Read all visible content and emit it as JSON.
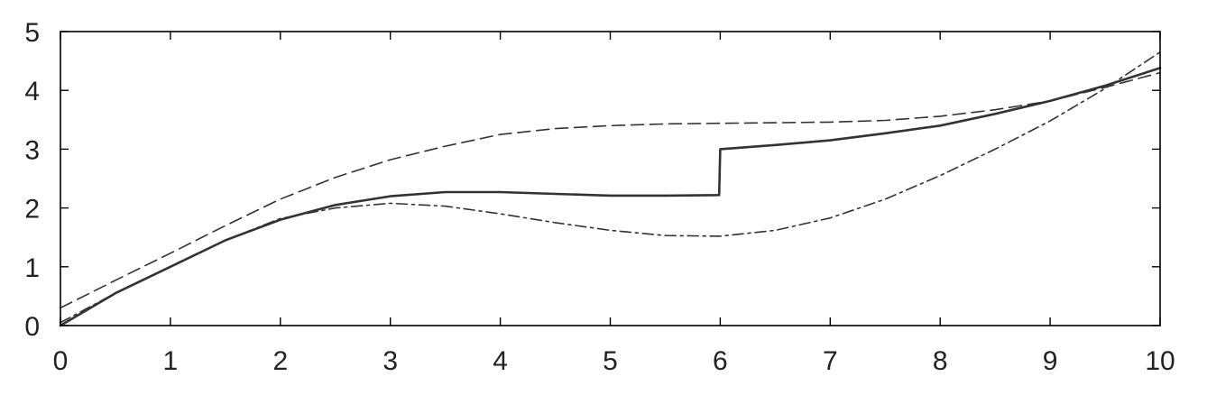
{
  "chart_data": {
    "type": "line",
    "xlim": [
      0,
      10
    ],
    "ylim": [
      0,
      5
    ],
    "x_ticks": [
      "0",
      "1",
      "2",
      "3",
      "4",
      "5",
      "6",
      "7",
      "8",
      "9",
      "10"
    ],
    "y_ticks": [
      "0",
      "1",
      "2",
      "3",
      "4",
      "5"
    ],
    "grid": false,
    "legend": "none",
    "series": [
      {
        "style": "solid",
        "color": "#333333",
        "points": [
          [
            0,
            0
          ],
          [
            0.5,
            0.55
          ],
          [
            1,
            1.0
          ],
          [
            1.5,
            1.45
          ],
          [
            2,
            1.8
          ],
          [
            2.5,
            2.05
          ],
          [
            3,
            2.2
          ],
          [
            3.5,
            2.27
          ],
          [
            4,
            2.27
          ],
          [
            4.5,
            2.24
          ],
          [
            5,
            2.21
          ],
          [
            5.5,
            2.21
          ],
          [
            5.99,
            2.22
          ],
          [
            6,
            3.0
          ],
          [
            6.5,
            3.07
          ],
          [
            7,
            3.15
          ],
          [
            7.5,
            3.27
          ],
          [
            8,
            3.4
          ],
          [
            8.5,
            3.6
          ],
          [
            9,
            3.82
          ],
          [
            9.5,
            4.08
          ],
          [
            10,
            4.38
          ]
        ]
      },
      {
        "style": "dashed",
        "color": "#333333",
        "points": [
          [
            0,
            0.3
          ],
          [
            0.5,
            0.77
          ],
          [
            1,
            1.23
          ],
          [
            1.5,
            1.7
          ],
          [
            2,
            2.15
          ],
          [
            2.5,
            2.52
          ],
          [
            3,
            2.82
          ],
          [
            3.5,
            3.05
          ],
          [
            4,
            3.25
          ],
          [
            4.5,
            3.35
          ],
          [
            5,
            3.4
          ],
          [
            5.5,
            3.43
          ],
          [
            6,
            3.44
          ],
          [
            6.5,
            3.45
          ],
          [
            7,
            3.46
          ],
          [
            7.5,
            3.49
          ],
          [
            8,
            3.56
          ],
          [
            8.5,
            3.67
          ],
          [
            9,
            3.82
          ],
          [
            9.5,
            4.05
          ],
          [
            10,
            4.3
          ]
        ]
      },
      {
        "style": "dashdot",
        "color": "#333333",
        "points": [
          [
            0,
            0.05
          ],
          [
            0.5,
            0.55
          ],
          [
            1,
            1.0
          ],
          [
            1.5,
            1.45
          ],
          [
            2,
            1.82
          ],
          [
            2.5,
            2.0
          ],
          [
            3,
            2.08
          ],
          [
            3.5,
            2.03
          ],
          [
            4,
            1.9
          ],
          [
            4.5,
            1.75
          ],
          [
            5,
            1.62
          ],
          [
            5.5,
            1.53
          ],
          [
            6,
            1.52
          ],
          [
            6.5,
            1.62
          ],
          [
            7,
            1.83
          ],
          [
            7.5,
            2.15
          ],
          [
            8,
            2.55
          ],
          [
            8.5,
            3.0
          ],
          [
            9,
            3.48
          ],
          [
            9.5,
            4.03
          ],
          [
            10,
            4.65
          ]
        ]
      }
    ]
  }
}
